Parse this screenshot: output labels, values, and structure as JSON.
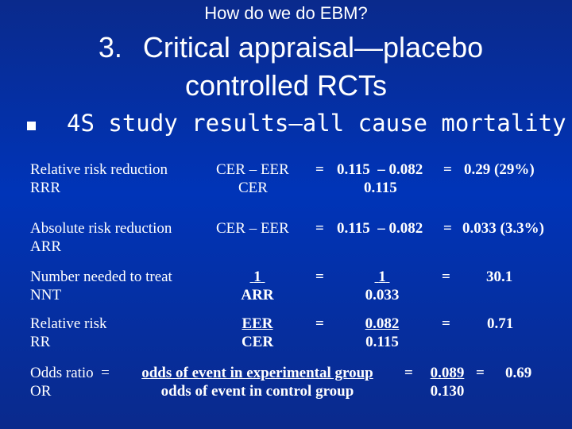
{
  "slide": {
    "subtitle": "How do we do EBM?",
    "title_number": "3.",
    "title_line1": "Critical appraisal—placebo",
    "title_line2": "controlled RCTs",
    "bullet": "4S study results—all cause mortality"
  },
  "rows": {
    "rrr": {
      "label1": "Relative risk reduction",
      "label2": "RRR",
      "formula_num": "CER – EER",
      "formula_den": "CER",
      "eq": "=",
      "values_num": "0.115  – 0.082",
      "values_den": "0.115",
      "eq2": "=",
      "result": "0.29 (29%)"
    },
    "arr": {
      "label1": "Absolute risk reduction",
      "label2": "ARR",
      "formula": "CER – EER",
      "eq": "=",
      "values": "0.115  – 0.082",
      "eq2": "=",
      "result": "0.033 (3.3%)"
    },
    "nnt": {
      "label1": "Number needed to treat",
      "label2": "NNT",
      "formula_num": "1",
      "formula_den": "ARR",
      "eq": "=",
      "values_num": "1",
      "values_den": "0.033",
      "eq2": "=",
      "result": "30.1"
    },
    "rr": {
      "label1": "Relative risk",
      "label2": "RR",
      "formula_num": "EER",
      "formula_den": "CER",
      "eq": "=",
      "values_num": "0.082",
      "values_den": "0.115",
      "eq2": "=",
      "result": "0.71"
    },
    "or": {
      "label1": "Odds ratio  =",
      "label2": "OR",
      "formula_num": "odds of event in experimental group",
      "formula_den": "odds of event in control group",
      "eq": "=",
      "values_num": "0.089",
      "values_den": "0.130",
      "eq2": "=",
      "result": "0.69"
    }
  }
}
